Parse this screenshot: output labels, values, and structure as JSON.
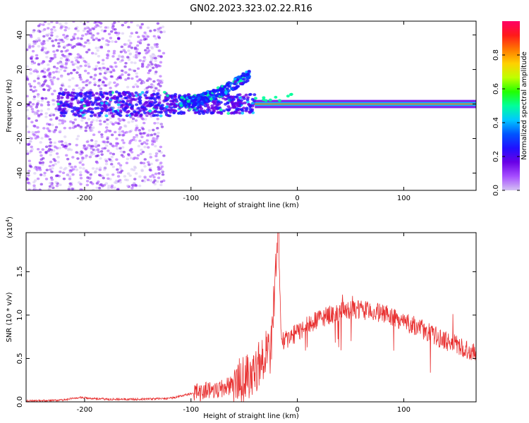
{
  "title": "GN02.2023.323.02.22.R16",
  "colors": {
    "snr_line": "#e83030",
    "axis": "#000000"
  },
  "chart_data": [
    {
      "type": "heatmap",
      "xlabel": "Height of straight line (km)",
      "ylabel": "Frequency (Hz)",
      "xlim": [
        -255,
        168
      ],
      "ylim": [
        -50,
        48
      ],
      "xticks": [
        -200,
        -100,
        0,
        100
      ],
      "yticks": [
        -40,
        -20,
        0,
        20,
        40
      ],
      "colorbar": {
        "label": "Normalized spectral amplitude",
        "range": [
          0,
          1
        ],
        "ticks": [
          "0.0",
          "0.2",
          "0.4",
          "0.6",
          "0.8"
        ],
        "stops": [
          "#d4c2f2",
          "#a64dff",
          "#6a00e6",
          "#2010ff",
          "#0055ff",
          "#00c8ff",
          "#00ff9a",
          "#22ff00",
          "#bfff00",
          "#ffd000",
          "#ff7700",
          "#ff1a1a",
          "#ff0066"
        ]
      },
      "features": [
        {
          "feature": "steady carrier",
          "x_range": [
            -40,
            168
          ],
          "frequency": 0,
          "amplitude": 1.0
        },
        {
          "feature": "rising arc",
          "x_range": [
            -110,
            -45
          ],
          "frequency_range": [
            0,
            16
          ]
        },
        {
          "feature": "noise band",
          "x_range": [
            -255,
            -125
          ],
          "frequency_range": [
            -50,
            48
          ]
        }
      ]
    },
    {
      "type": "line",
      "xlabel": "Height of straight line (km)",
      "ylabel": "SNR (10 * v/v)",
      "y_exponent_label": "(x10",
      "y_exponent_power": "4",
      "y_exponent_close": ")",
      "xlim": [
        -255,
        168
      ],
      "ylim": [
        0,
        1.95
      ],
      "xticks": [
        -200,
        -100,
        0,
        100
      ],
      "yticks": [
        "0.0",
        "0.5",
        "1.0",
        "1.5"
      ],
      "series": [
        {
          "x": [
            -255,
            -220,
            -205,
            -180,
            -150,
            -120,
            -105,
            -90,
            -70,
            -55,
            -45,
            -40,
            -35,
            -30,
            -25,
            -18,
            -15,
            -10,
            0,
            10,
            20,
            30,
            40,
            50,
            60,
            70,
            80,
            90,
            100,
            110,
            120,
            130,
            140,
            150,
            160,
            168
          ],
          "y": [
            0.01,
            0.02,
            0.05,
            0.03,
            0.03,
            0.04,
            0.08,
            0.12,
            0.16,
            0.22,
            0.32,
            0.38,
            0.45,
            0.55,
            0.6,
            1.95,
            0.7,
            0.72,
            0.8,
            0.88,
            0.95,
            1.0,
            1.04,
            1.05,
            1.06,
            1.04,
            1.02,
            0.98,
            0.92,
            0.88,
            0.82,
            0.76,
            0.7,
            0.66,
            0.6,
            0.55
          ]
        }
      ]
    }
  ]
}
